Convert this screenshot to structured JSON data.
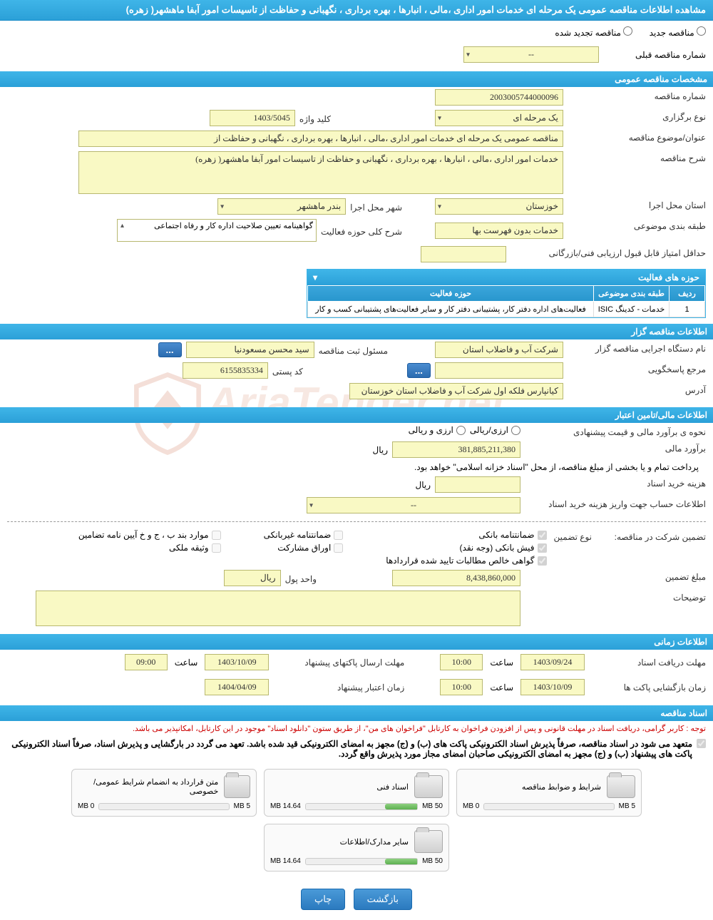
{
  "page": {
    "title": "مشاهده اطلاعات مناقصه عمومی یک مرحله ای خدمات امور اداری ،مالی ، انبارها ، بهره برداری ، نگهبانی و حفاظت از تاسیسات امور آبفا ماهشهر( زهره)",
    "radio_new": "مناقصه جدید",
    "radio_renew": "مناقصه تجدید شده",
    "prev_num_lbl": "شماره مناقصه قبلی",
    "prev_num_val": "--"
  },
  "general": {
    "hdr": "مشخصات مناقصه عمومی",
    "num_lbl": "شماره مناقصه",
    "num_val": "2003005744000096",
    "type_lbl": "نوع برگزاری",
    "type_val": "یک مرحله ای",
    "key_lbl": "کلید واژه",
    "key_val": "1403/5045",
    "subject_lbl": "عنوان/موضوع مناقصه",
    "subject_val": "مناقصه عمومی یک مرحله ای خدمات امور اداری ،مالی ، انبارها ، بهره برداری ، نگهبانی و حفاظت از",
    "desc_lbl": "شرح مناقصه",
    "desc_val": "خدمات امور اداری ،مالی ، انبارها ، بهره برداری ، نگهبانی و حفاظت از تاسیسات امور آبفا ماهشهر( زهره)",
    "province_lbl": "استان محل اجرا",
    "province_val": "خوزستان",
    "city_lbl": "شهر محل اجرا",
    "city_val": "بندر ماهشهر",
    "cat_lbl": "طبقه بندی موضوعی",
    "cat_val": "خدمات بدون فهرست بها",
    "scope_lbl": "شرح کلی حوزه فعالیت",
    "scope_val": "گواهینامه تعیین صلاحیت اداره کار و رفاه اجتماعی",
    "min_score_lbl": "حداقل امتیاز قابل قبول ارزیابی فنی/بازرگانی",
    "min_score_val": "",
    "activity_hdr": "حوزه های فعالیت",
    "activity_cols": {
      "row": "ردیف",
      "cat": "طبقه بندی موضوعی",
      "scope": "حوزه فعالیت"
    },
    "activity_row": {
      "n": "1",
      "cat": "خدمات - کدینگ ISIC",
      "scope": "فعالیت‌های  اداره دفتر کار، پشتیبانی دفتر کار و سایر فعالیت‌های پشتیبانی کسب و کار"
    }
  },
  "tenderer": {
    "hdr": "اطلاعات مناقصه گزار",
    "org_lbl": "نام دستگاه اجرایی مناقصه گزار",
    "org_val": "شرکت آب و فاضلاب استان",
    "reg_lbl": "مسئول ثبت مناقصه",
    "reg_val": "سید محسن مسعودنیا",
    "resp_lbl": "مرجع پاسخگویی",
    "resp_val": "",
    "postal_lbl": "کد پستی",
    "postal_val": "6155835334",
    "addr_lbl": "آدرس",
    "addr_val": "کیانپارس فلکه اول شرکت آب و فاضلاب استان خوزستان",
    "ellipsis": "..."
  },
  "fin": {
    "hdr": "اطلاعات مالی/تامین اعتبار",
    "method_lbl": "نحوه ی برآورد مالی و قیمت پیشنهادی",
    "method_opt1": "ارزی/ریالی",
    "method_opt2": "ارزی و ریالی",
    "est_lbl": "برآورد مالی",
    "est_val": "381,885,211,380",
    "rial": "ریال",
    "note": "پرداخت تمام و یا بخشی از مبلغ مناقصه، از محل \"اسناد خزانه اسلامی\" خواهد بود.",
    "purchase_lbl": "هزینه خرید اسناد",
    "purchase_val": "",
    "acct_lbl": "اطلاعات حساب جهت واریز هزینه خرید اسناد",
    "acct_val": "--"
  },
  "guar": {
    "lbl": "تضمین شرکت در مناقصه:",
    "type_lbl": "نوع تضمین",
    "c1": "ضمانتنامه بانکی",
    "c2": "ضمانتنامه غیربانکی",
    "c3": "موارد بند ب ، ج و خ آیین نامه تضامین",
    "c4": "فیش بانکی (وجه نقد)",
    "c5": "اوراق مشارکت",
    "c6": "وثیقه ملکی",
    "c7": "گواهی خالص مطالبات تایید شده قراردادها",
    "amount_lbl": "مبلغ تضمین",
    "amount_val": "8,438,860,000",
    "unit_lbl": "واحد پول",
    "unit_val": "ریال",
    "notes_lbl": "توضیحات",
    "notes_val": ""
  },
  "time": {
    "hdr": "اطلاعات زمانی",
    "recv_lbl": "مهلت دریافت اسناد",
    "recv_date": "1403/09/24",
    "recv_time": "10:00",
    "send_lbl": "مهلت ارسال پاکتهای پیشنهاد",
    "send_date": "1403/10/09",
    "send_time": "09:00",
    "open_lbl": "زمان بازگشایی پاکت ها",
    "open_date": "1403/10/09",
    "open_time": "10:00",
    "valid_lbl": "زمان اعتبار پیشنهاد",
    "valid_date": "1404/04/09",
    "hour": "ساعت"
  },
  "docs": {
    "hdr": "اسناد مناقصه",
    "note": "توجه : کاربر گرامی، دریافت اسناد در مهلت قانونی و پس از افزودن فراخوان به کارتابل \"فراخوان های من\"، از طریق ستون \"دانلود اسناد\" موجود در این کارتابل، امکانپذیر می باشد.",
    "consent": "متعهد می شود در اسناد مناقصه، صرفاً پذیرش اسناد الکترونیکی پاکت های (ب) و (ج) مجهز به امضای الکترونیکی قید شده باشد. تعهد می گردد در بارگشایی و پذیرش اسناد، صرفاً اسناد الکترونیکی پاکت های پیشنهاد (ب) و (ج) مجهز به امضای الکترونیکی صاحبان امضای مجاز مورد پذیرش واقع گردد.",
    "cards": [
      {
        "title": "شرایط و ضوابط مناقصه",
        "used": "0 MB",
        "total": "5 MB",
        "pct": 0
      },
      {
        "title": "اسناد فنی",
        "used": "14.64 MB",
        "total": "50 MB",
        "pct": 29
      },
      {
        "title": "متن قرارداد به انضمام شرایط عمومی/خصوصی",
        "used": "0 MB",
        "total": "5 MB",
        "pct": 0
      },
      {
        "title": "سایر مدارک/اطلاعات",
        "used": "14.64 MB",
        "total": "50 MB",
        "pct": 29
      }
    ]
  },
  "buttons": {
    "print": "چاپ",
    "back": "بازگشت"
  },
  "colors": {
    "hdr_grad_a": "#3fb5e8",
    "hdr_grad_b": "#2ba0d8",
    "field_bg": "#f9f9c4",
    "field_border": "#b8b870",
    "btn_a": "#4a9ad8",
    "btn_b": "#2b7abf",
    "red": "#c00",
    "bar_a": "#8ed080",
    "bar_b": "#5cb050"
  }
}
